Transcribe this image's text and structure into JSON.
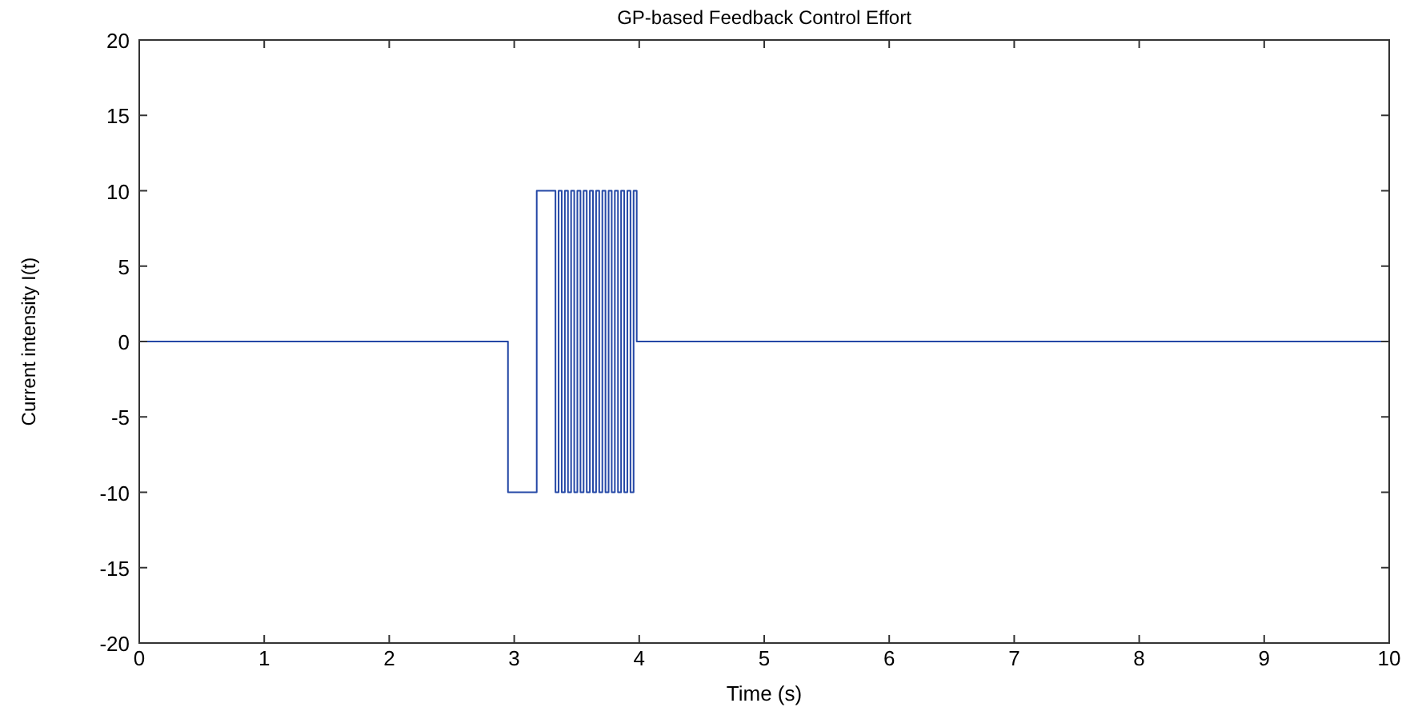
{
  "chart_data": {
    "type": "step",
    "title": "GP-based Feedback Control Effort",
    "xlabel": "Time (s)",
    "ylabel": "Current intensity  I(t)",
    "xlim": [
      0,
      10
    ],
    "xticks": [
      0,
      1,
      2,
      3,
      4,
      5,
      6,
      7,
      8,
      9,
      10
    ],
    "ylim": [
      -20,
      20
    ],
    "yticks": [
      -20,
      -15,
      -10,
      -5,
      0,
      5,
      10,
      15,
      20
    ],
    "grid": false,
    "series": [
      {
        "color": "#2548a6",
        "x": [
          0,
          2.95,
          3.18,
          3.33,
          3.355,
          3.38,
          3.405,
          3.43,
          3.455,
          3.48,
          3.505,
          3.53,
          3.555,
          3.58,
          3.605,
          3.63,
          3.655,
          3.68,
          3.705,
          3.73,
          3.755,
          3.78,
          3.805,
          3.83,
          3.855,
          3.88,
          3.905,
          3.93,
          3.955,
          3.98,
          10
        ],
        "values": [
          0,
          -10,
          10,
          -10,
          10,
          -10,
          10,
          -10,
          10,
          -10,
          10,
          -10,
          10,
          -10,
          10,
          -10,
          10,
          -10,
          10,
          -10,
          10,
          -10,
          10,
          -10,
          10,
          -10,
          10,
          -10,
          10,
          0,
          0
        ]
      }
    ]
  }
}
